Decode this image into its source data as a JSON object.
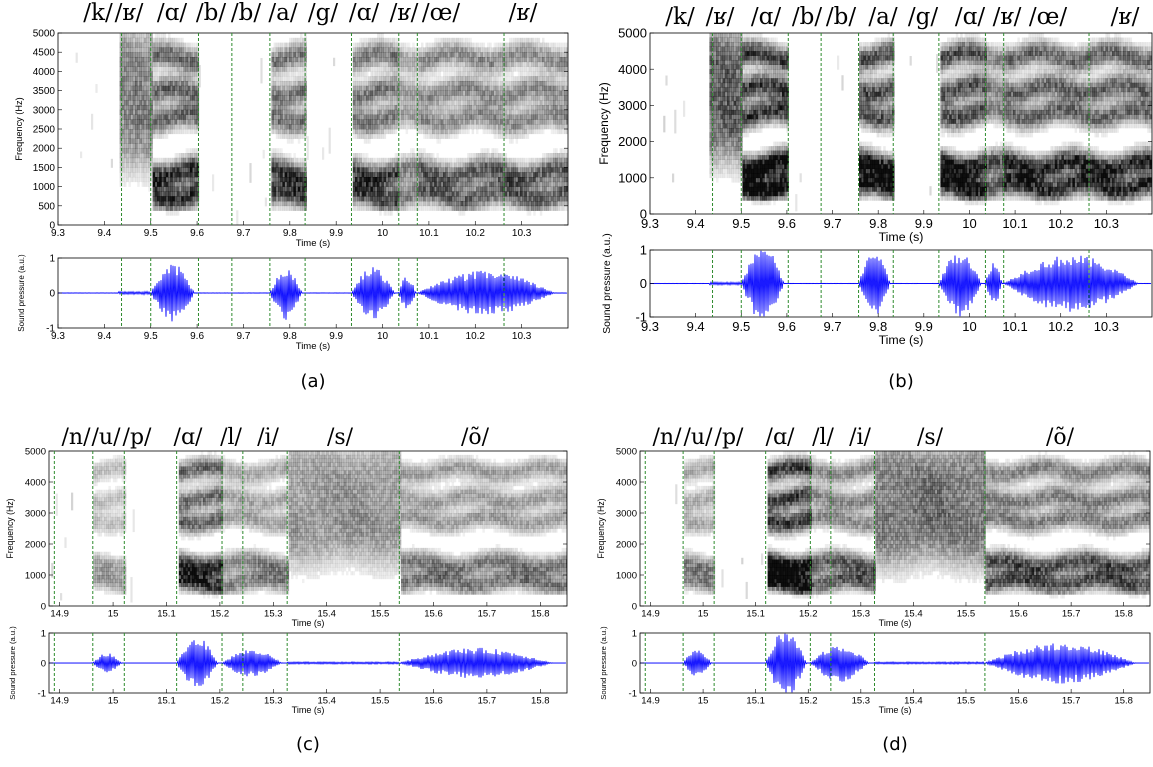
{
  "chart_data": [
    {
      "type": "spectrogram",
      "panel": "(a)",
      "caption": "(a)",
      "phonemes": [
        "/k/",
        "/ʁ/",
        "/ɑ/",
        "/b/",
        "/b/",
        "/a/",
        "/g/",
        "/ɑ/",
        "/ʁ/",
        "/œ/",
        "/ʁ/"
      ],
      "boundaries": [
        9.437,
        9.5,
        9.603,
        9.675,
        9.757,
        9.833,
        9.933,
        10.035,
        10.075,
        10.262
      ],
      "x_range": [
        9.3,
        10.4
      ],
      "x_ticks": [
        "9.3",
        "9.4",
        "9.5",
        "9.6",
        "9.7",
        "9.8",
        "9.9",
        "10",
        "10.1",
        "10.2",
        "10.3"
      ],
      "spec": {
        "ylabel": "Frequency (Hz)",
        "xlabel": "Time (s)",
        "ylim": [
          0,
          5000
        ],
        "y_ticks": [
          "0",
          "500",
          "1000",
          "1500",
          "2000",
          "2500",
          "3000",
          "3500",
          "4000",
          "4500",
          "5000"
        ]
      },
      "wave": {
        "ylabel": "Sound pressure (a.u.)",
        "xlabel": "Time (s)",
        "ylim": [
          -1,
          1
        ],
        "y_ticks": [
          "-1",
          "0",
          "1"
        ]
      }
    },
    {
      "type": "spectrogram",
      "panel": "(b)",
      "caption": "(b)",
      "phonemes": [
        "/k/",
        "/ʁ/",
        "/ɑ/",
        "/b/",
        "/b/",
        "/a/",
        "/g/",
        "/ɑ/",
        "/ʁ/",
        "/œ/",
        "/ʁ/"
      ],
      "boundaries": [
        9.437,
        9.5,
        9.603,
        9.675,
        9.757,
        9.833,
        9.933,
        10.035,
        10.075,
        10.262
      ],
      "x_range": [
        9.3,
        10.4
      ],
      "x_ticks": [
        "9.3",
        "9.4",
        "9.5",
        "9.6",
        "9.7",
        "9.8",
        "9.9",
        "10",
        "10.1",
        "10.2",
        "10.3"
      ],
      "spec": {
        "ylabel": "Frequency (Hz)",
        "xlabel": "Time (s)",
        "ylim": [
          0,
          5000
        ],
        "y_ticks": [
          "0",
          "1000",
          "2000",
          "3000",
          "4000",
          "5000"
        ]
      },
      "wave": {
        "ylabel": "Sound pressure (a.u.)",
        "xlabel": "Time (s)",
        "ylim": [
          -1,
          1
        ],
        "y_ticks": [
          "-1",
          "0",
          "1"
        ]
      }
    },
    {
      "type": "spectrogram",
      "panel": "(c)",
      "caption": "(c)",
      "phonemes": [
        "/n/",
        "/u/",
        "/p/",
        "/ɑ/",
        "/l/",
        "/i/",
        "/s/",
        "/õ/"
      ],
      "boundaries": [
        14.89,
        14.962,
        15.021,
        15.119,
        15.204,
        15.243,
        15.326,
        15.536
      ],
      "x_range": [
        14.88,
        15.85
      ],
      "x_ticks": [
        "14.9",
        "15",
        "15.1",
        "15.2",
        "15.3",
        "15.4",
        "15.5",
        "15.6",
        "15.7",
        "15.8"
      ],
      "spec": {
        "ylabel": "Frequency (Hz)",
        "xlabel": "Time (s)",
        "ylim": [
          0,
          5000
        ],
        "y_ticks": [
          "0",
          "1000",
          "2000",
          "3000",
          "4000",
          "5000"
        ]
      },
      "wave": {
        "ylabel": "Sound pressure (a.u.)",
        "xlabel": "Time (s)",
        "ylim": [
          -1,
          1
        ],
        "y_ticks": [
          "-1",
          "0",
          "1"
        ]
      }
    },
    {
      "type": "spectrogram",
      "panel": "(d)",
      "caption": "(d)",
      "phonemes": [
        "/n/",
        "/u/",
        "/p/",
        "/ɑ/",
        "/l/",
        "/i/",
        "/s/",
        "/õ/"
      ],
      "boundaries": [
        14.89,
        14.962,
        15.021,
        15.119,
        15.204,
        15.243,
        15.326,
        15.536
      ],
      "x_range": [
        14.88,
        15.85
      ],
      "x_ticks": [
        "14.9",
        "15",
        "15.1",
        "15.2",
        "15.3",
        "15.4",
        "15.5",
        "15.6",
        "15.7",
        "15.8"
      ],
      "spec": {
        "ylabel": "Frequency (Hz)",
        "xlabel": "Time (s)",
        "ylim": [
          0,
          5000
        ],
        "y_ticks": [
          "0",
          "1000",
          "2000",
          "3000",
          "4000",
          "5000"
        ]
      },
      "wave": {
        "ylabel": "Sound pressure (a.u.)",
        "xlabel": "Time (s)",
        "ylim": [
          -1,
          1
        ],
        "y_ticks": [
          "-1",
          "0",
          "1"
        ]
      }
    }
  ],
  "colors": {
    "waveform": "#0000ff",
    "boundary": "#2e8b2e",
    "spectrogram_ink": "#000000"
  }
}
